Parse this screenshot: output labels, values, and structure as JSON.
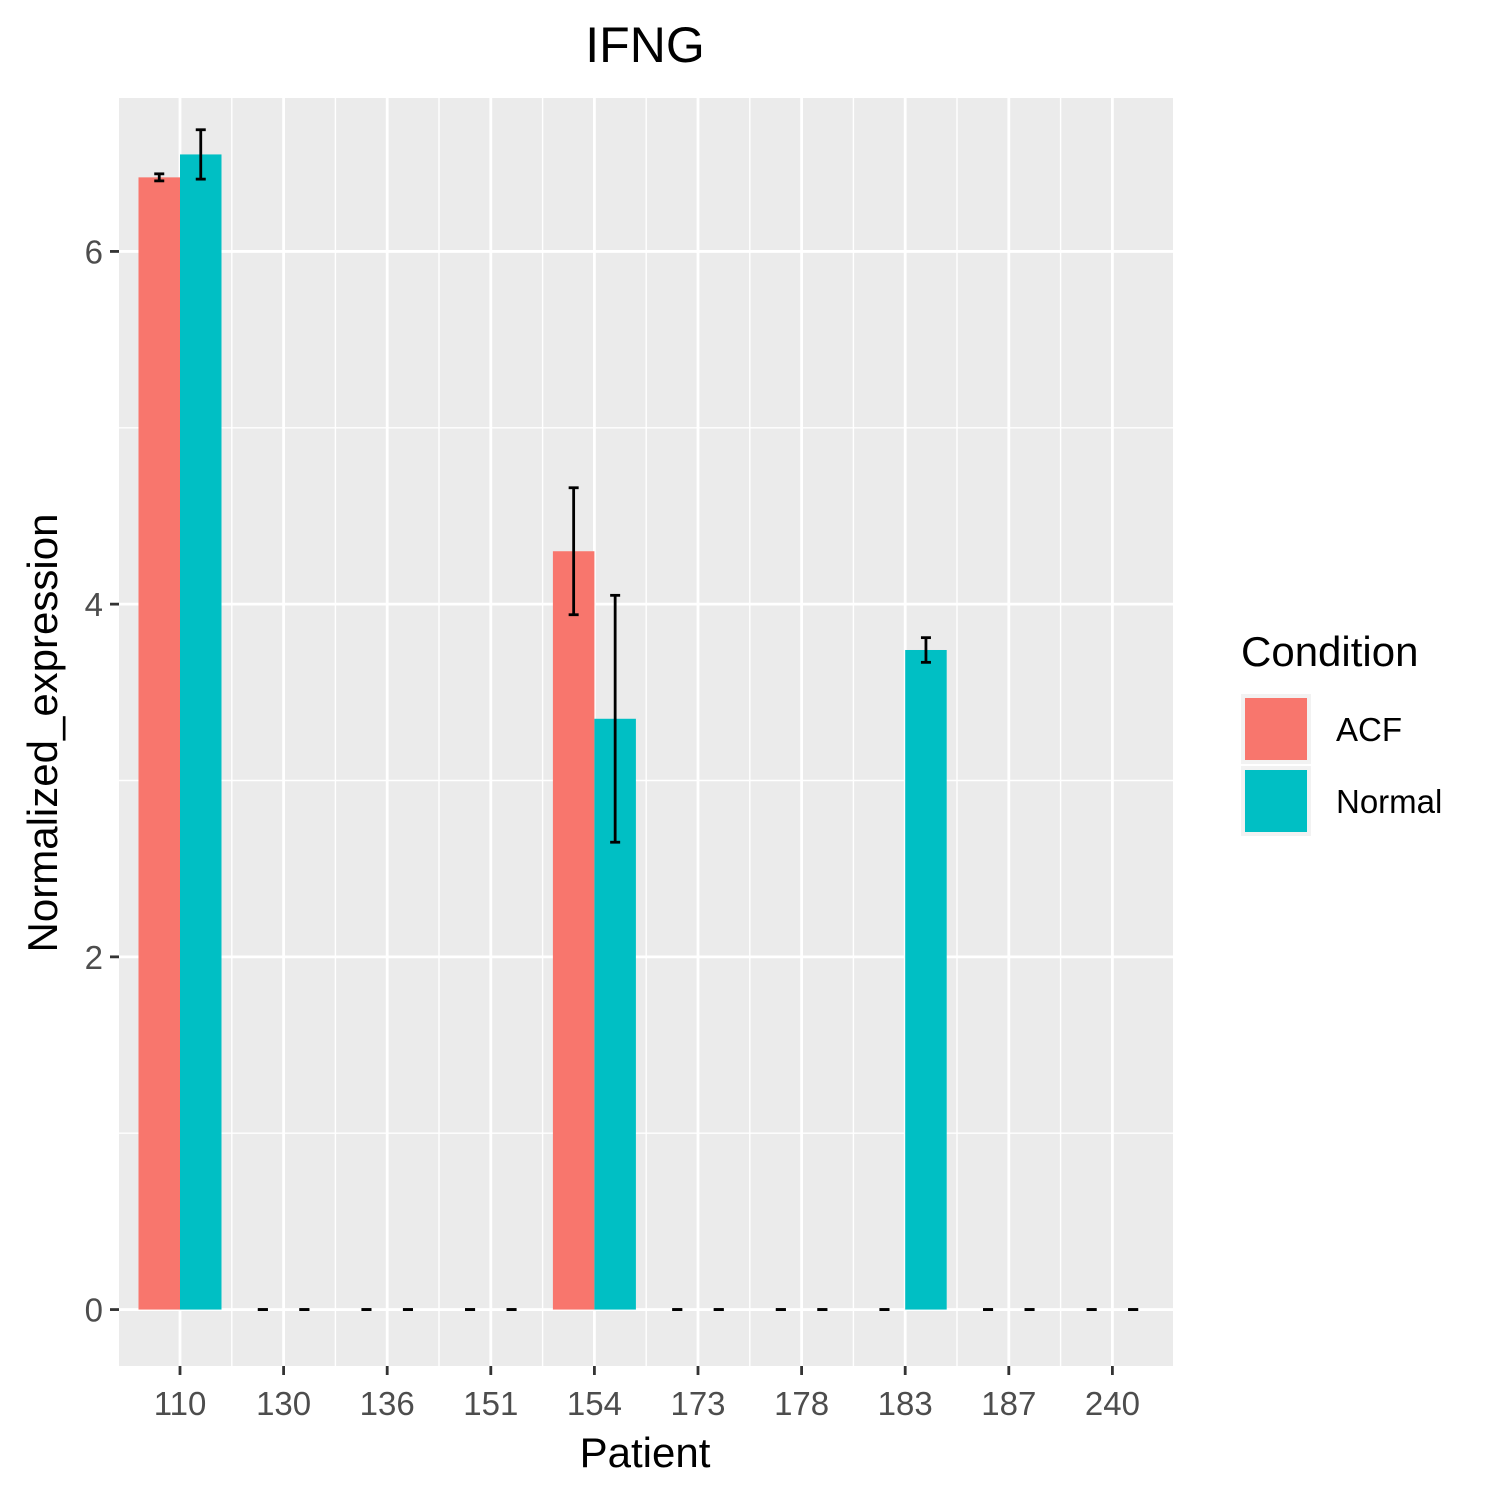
{
  "chart_data": {
    "type": "bar",
    "title": "IFNG",
    "xlabel": "Patient",
    "ylabel": "Normalized_expression",
    "categories": [
      "110",
      "130",
      "136",
      "151",
      "154",
      "173",
      "178",
      "183",
      "187",
      "240"
    ],
    "series": [
      {
        "name": "ACF",
        "color": "#F8766D",
        "values": [
          6.42,
          0,
          0,
          0,
          4.3,
          0,
          0,
          0,
          0,
          0
        ],
        "error": [
          [
            6.4,
            6.44
          ],
          [
            0,
            0
          ],
          [
            0,
            0
          ],
          [
            0,
            0
          ],
          [
            3.94,
            4.66
          ],
          [
            0,
            0
          ],
          [
            0,
            0
          ],
          [
            0,
            0
          ],
          [
            0,
            0
          ],
          [
            0,
            0
          ]
        ]
      },
      {
        "name": "Normal",
        "color": "#00BFC4",
        "values": [
          6.55,
          0,
          0,
          0,
          3.35,
          0,
          0,
          3.74,
          0,
          0
        ],
        "error": [
          [
            6.41,
            6.69
          ],
          [
            0,
            0
          ],
          [
            0,
            0
          ],
          [
            0,
            0
          ],
          [
            2.65,
            4.05
          ],
          [
            0,
            0
          ],
          [
            0,
            0
          ],
          [
            3.67,
            3.81
          ],
          [
            0,
            0
          ],
          [
            0,
            0
          ]
        ]
      }
    ],
    "ylim": [
      -0.32,
      6.87
    ],
    "yticks": [
      0,
      2,
      4,
      6
    ],
    "legend": {
      "title": "Condition",
      "position": "right"
    },
    "grid": true,
    "panel_background": "#EBEBEB"
  }
}
